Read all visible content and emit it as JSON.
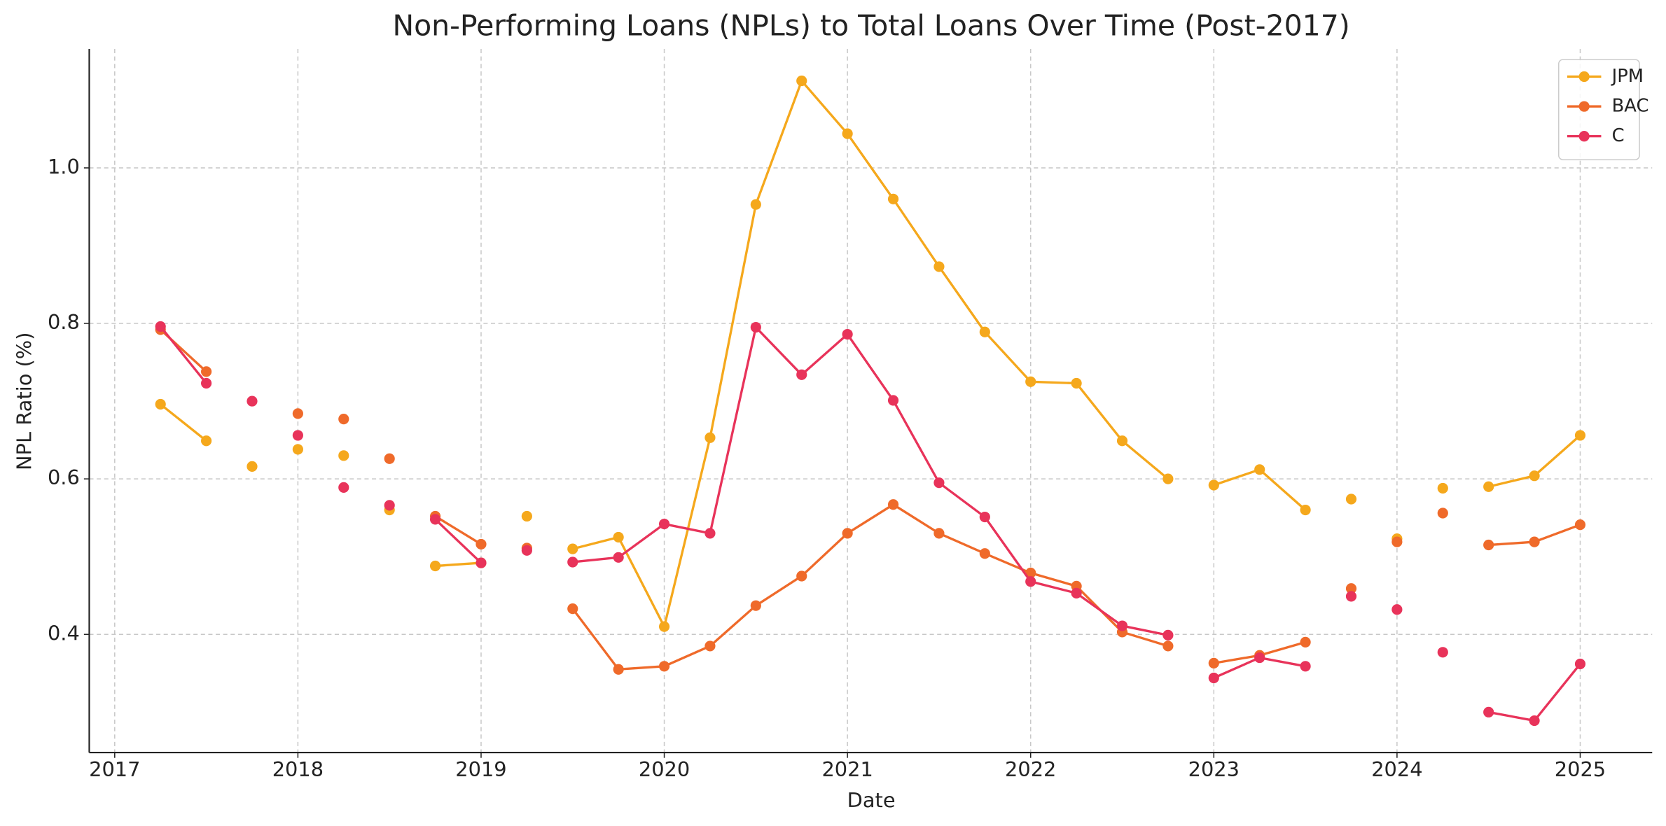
{
  "chart_data": {
    "type": "line",
    "title": "Non-Performing Loans (NPLs) to Total Loans Over Time (Post-2017)",
    "x_label": "Date",
    "y_label": "NPL Ratio (%)",
    "x": [
      2017.25,
      2017.5,
      2017.625,
      2017.75,
      2017.875,
      2018,
      2018.125,
      2018.25,
      2018.375,
      2018.5,
      2018.625,
      2018.75,
      2019,
      2019.125,
      2019.25,
      2019.375,
      2019.5,
      2019.75,
      2020,
      2020.25,
      2020.5,
      2020.75,
      2021,
      2021.25,
      2021.5,
      2021.75,
      2022,
      2022.25,
      2022.5,
      2022.75,
      2022.875,
      2023,
      2023.25,
      2023.5,
      2023.625,
      2023.75,
      2023.875,
      2024,
      2024.125,
      2024.25,
      2024.375,
      2024.5,
      2024.75,
      2025
    ],
    "series": [
      {
        "name": "JPM",
        "color": "#f5a81c",
        "values": [
          0.696,
          0.649,
          null,
          0.616,
          null,
          0.638,
          null,
          0.63,
          null,
          0.56,
          null,
          0.488,
          0.492,
          null,
          0.552,
          null,
          0.51,
          0.525,
          0.41,
          0.653,
          0.953,
          1.112,
          1.044,
          0.96,
          0.873,
          0.789,
          0.725,
          0.723,
          0.649,
          0.6,
          null,
          0.592,
          0.612,
          0.56,
          null,
          0.574,
          null,
          0.523,
          null,
          0.588,
          null,
          0.59,
          0.604,
          0.656
        ]
      },
      {
        "name": "BAC",
        "color": "#ef6a2a",
        "values": [
          0.792,
          0.738,
          null,
          null,
          null,
          0.684,
          null,
          0.677,
          null,
          0.626,
          null,
          0.552,
          0.516,
          null,
          0.511,
          null,
          0.433,
          0.355,
          0.359,
          0.385,
          0.437,
          0.475,
          0.53,
          0.567,
          0.53,
          0.504,
          0.479,
          0.462,
          0.403,
          0.385,
          null,
          0.363,
          0.373,
          0.39,
          null,
          0.459,
          null,
          0.519,
          null,
          0.556,
          null,
          0.515,
          0.519,
          0.541
        ]
      },
      {
        "name": "C",
        "color": "#e8335a",
        "values": [
          0.796,
          0.723,
          null,
          0.7,
          null,
          0.656,
          null,
          0.589,
          null,
          0.566,
          null,
          0.548,
          0.492,
          null,
          0.508,
          null,
          0.493,
          0.499,
          0.542,
          0.53,
          0.795,
          0.734,
          0.786,
          0.701,
          0.595,
          0.551,
          0.468,
          0.453,
          0.411,
          0.399,
          null,
          0.344,
          0.37,
          0.359,
          null,
          0.449,
          null,
          0.432,
          null,
          0.377,
          null,
          0.3,
          0.289,
          0.362
        ]
      }
    ],
    "xlim": [
      2016.861,
      2025.393
    ],
    "xticks": [
      2017,
      2018,
      2019,
      2020,
      2021,
      2022,
      2023,
      2024,
      2025
    ],
    "ylim": [
      0.248,
      1.153
    ],
    "yticks": [
      0.4,
      0.6,
      0.8,
      {
        "value": 1.0,
        "label": "1.0"
      }
    ],
    "grid": true,
    "legend": "upper right"
  }
}
